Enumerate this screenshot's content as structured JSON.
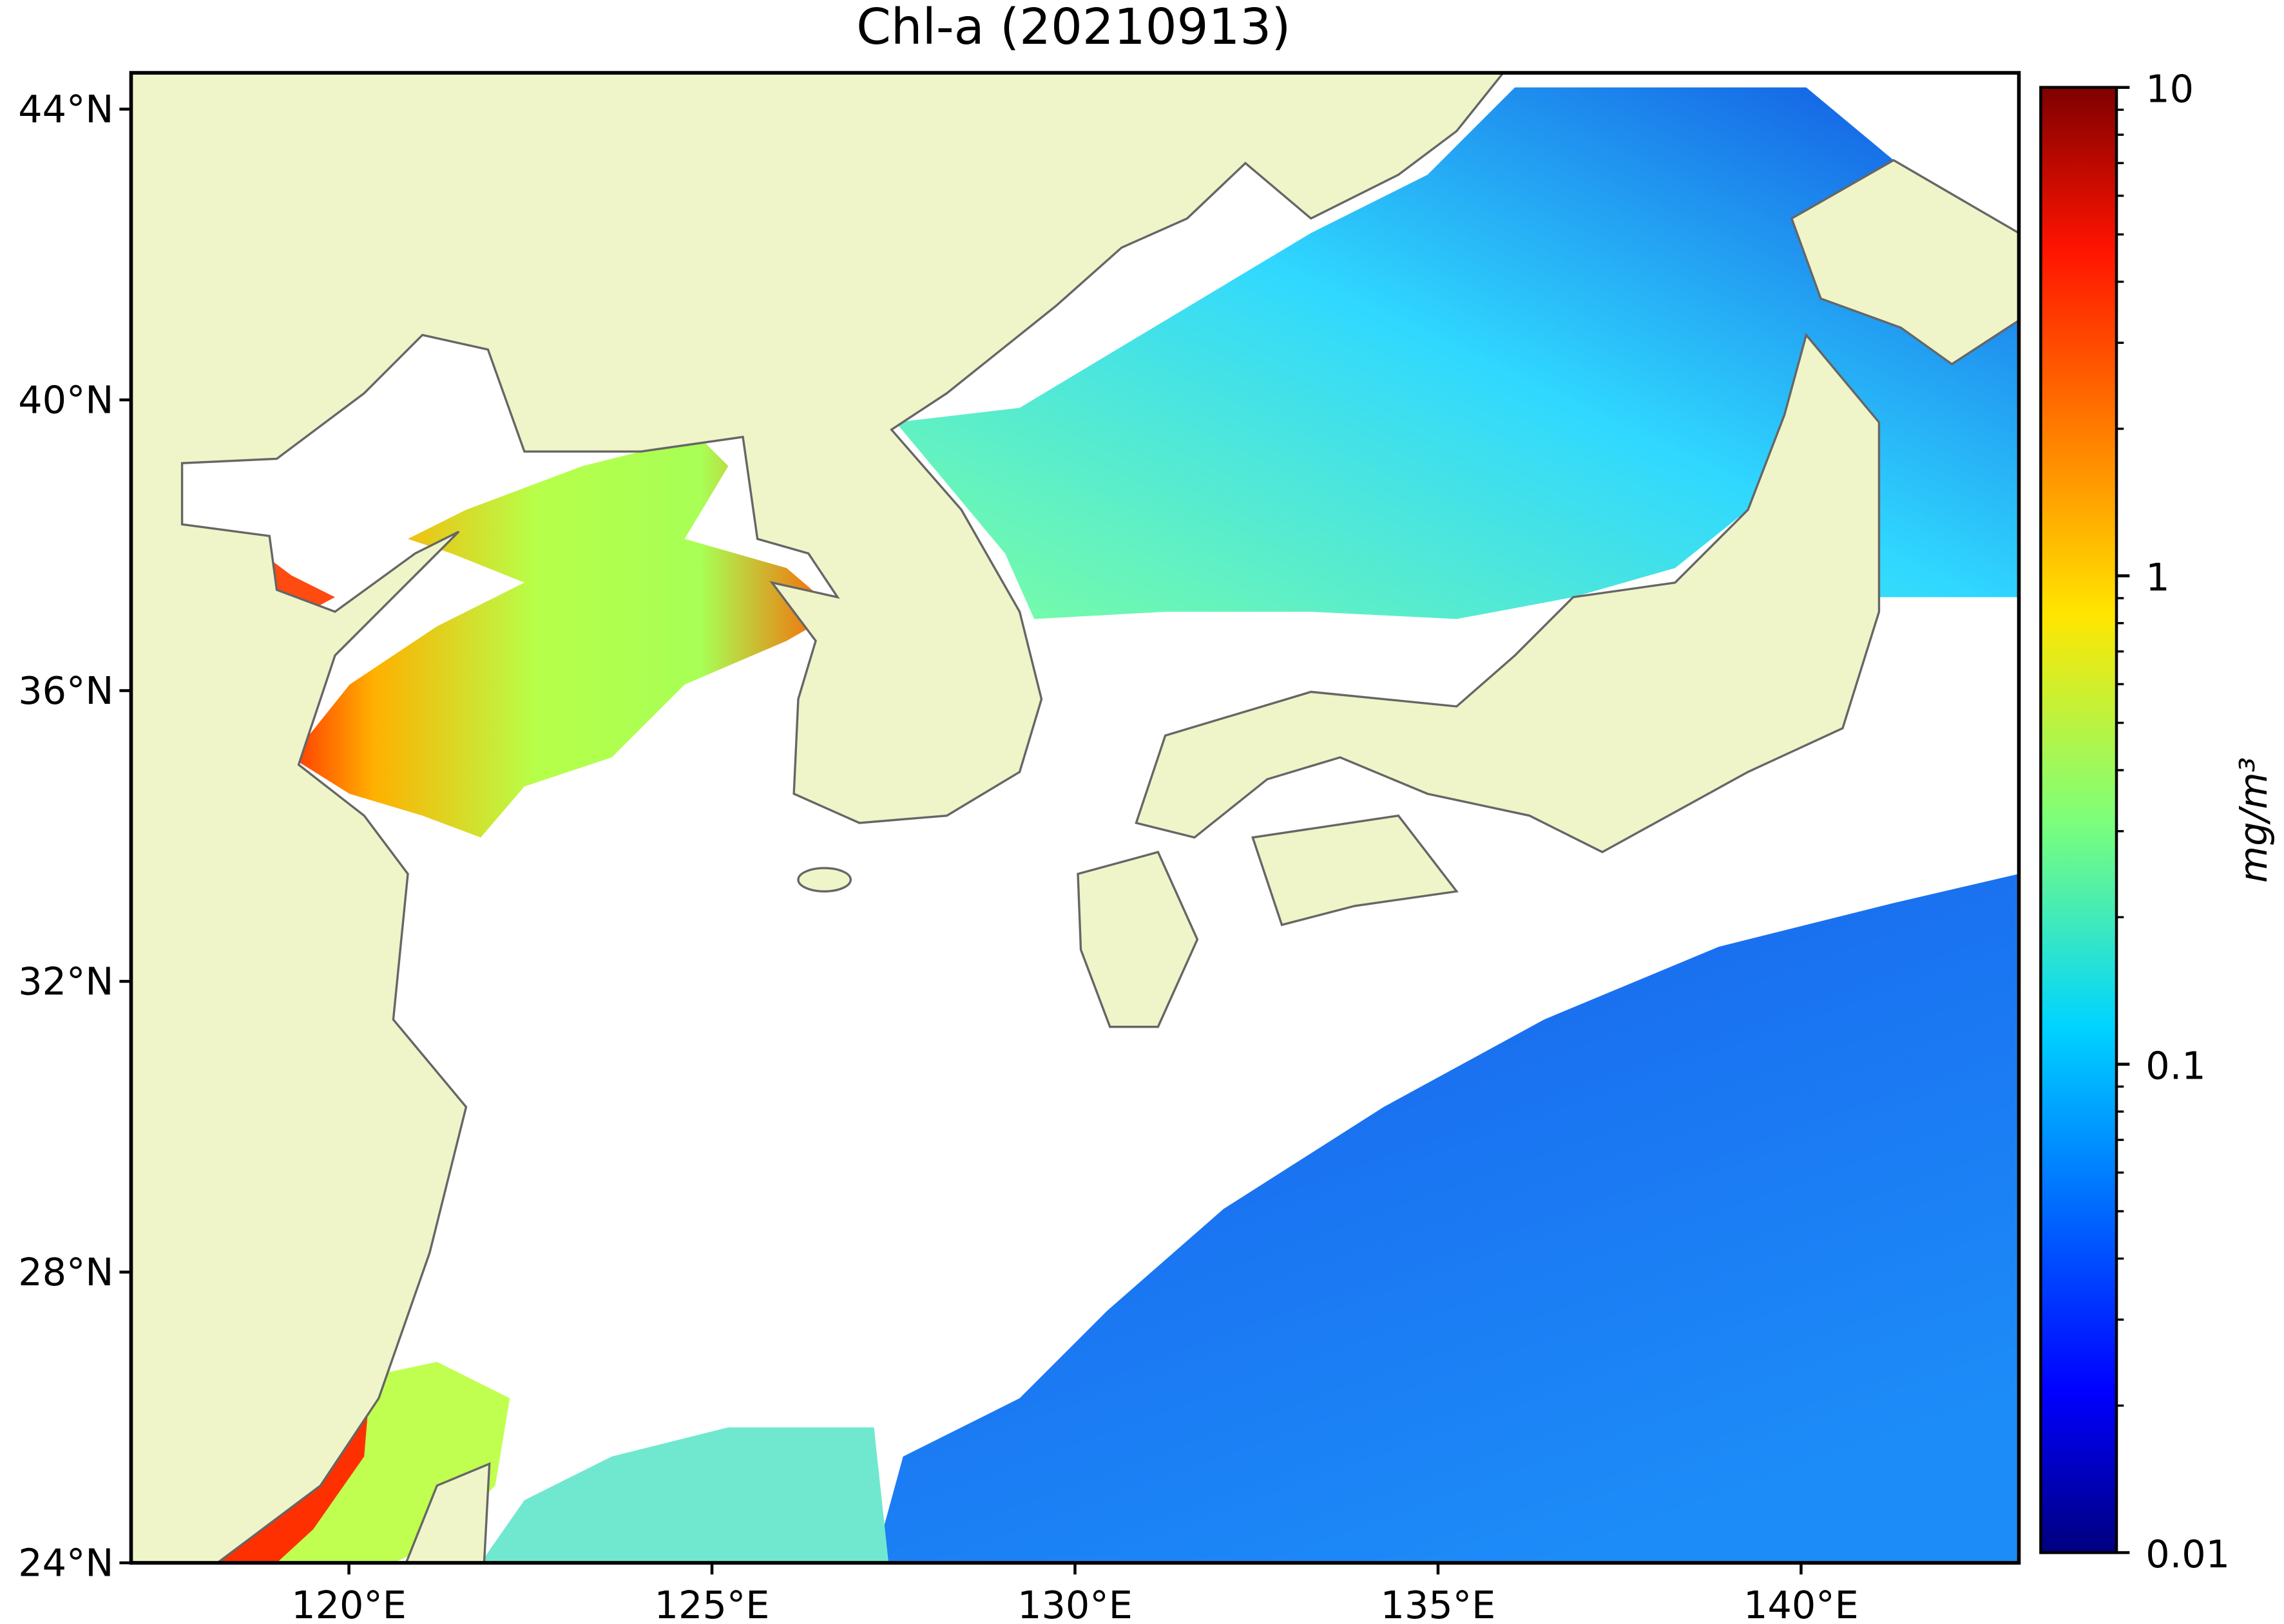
{
  "chart_data": {
    "type": "map",
    "title": "Chl-a (20210913)",
    "xlim": [
      117,
      143
    ],
    "ylim": [
      24,
      44.5
    ],
    "xticks": [
      {
        "value": 120,
        "label": "120°E"
      },
      {
        "value": 125,
        "label": "125°E"
      },
      {
        "value": 130,
        "label": "130°E"
      },
      {
        "value": 135,
        "label": "135°E"
      },
      {
        "value": 140,
        "label": "140°E"
      }
    ],
    "yticks": [
      {
        "value": 24,
        "label": "24°N"
      },
      {
        "value": 28,
        "label": "28°N"
      },
      {
        "value": 32,
        "label": "32°N"
      },
      {
        "value": 36,
        "label": "36°N"
      },
      {
        "value": 40,
        "label": "40°N"
      },
      {
        "value": 44,
        "label": "44°N"
      }
    ],
    "colorbar": {
      "label": "mg/m³",
      "lim": [
        0.01,
        10
      ],
      "scale": "log",
      "colormap": "jet",
      "ticks": [
        0.01,
        0.1,
        1,
        10
      ]
    }
  }
}
